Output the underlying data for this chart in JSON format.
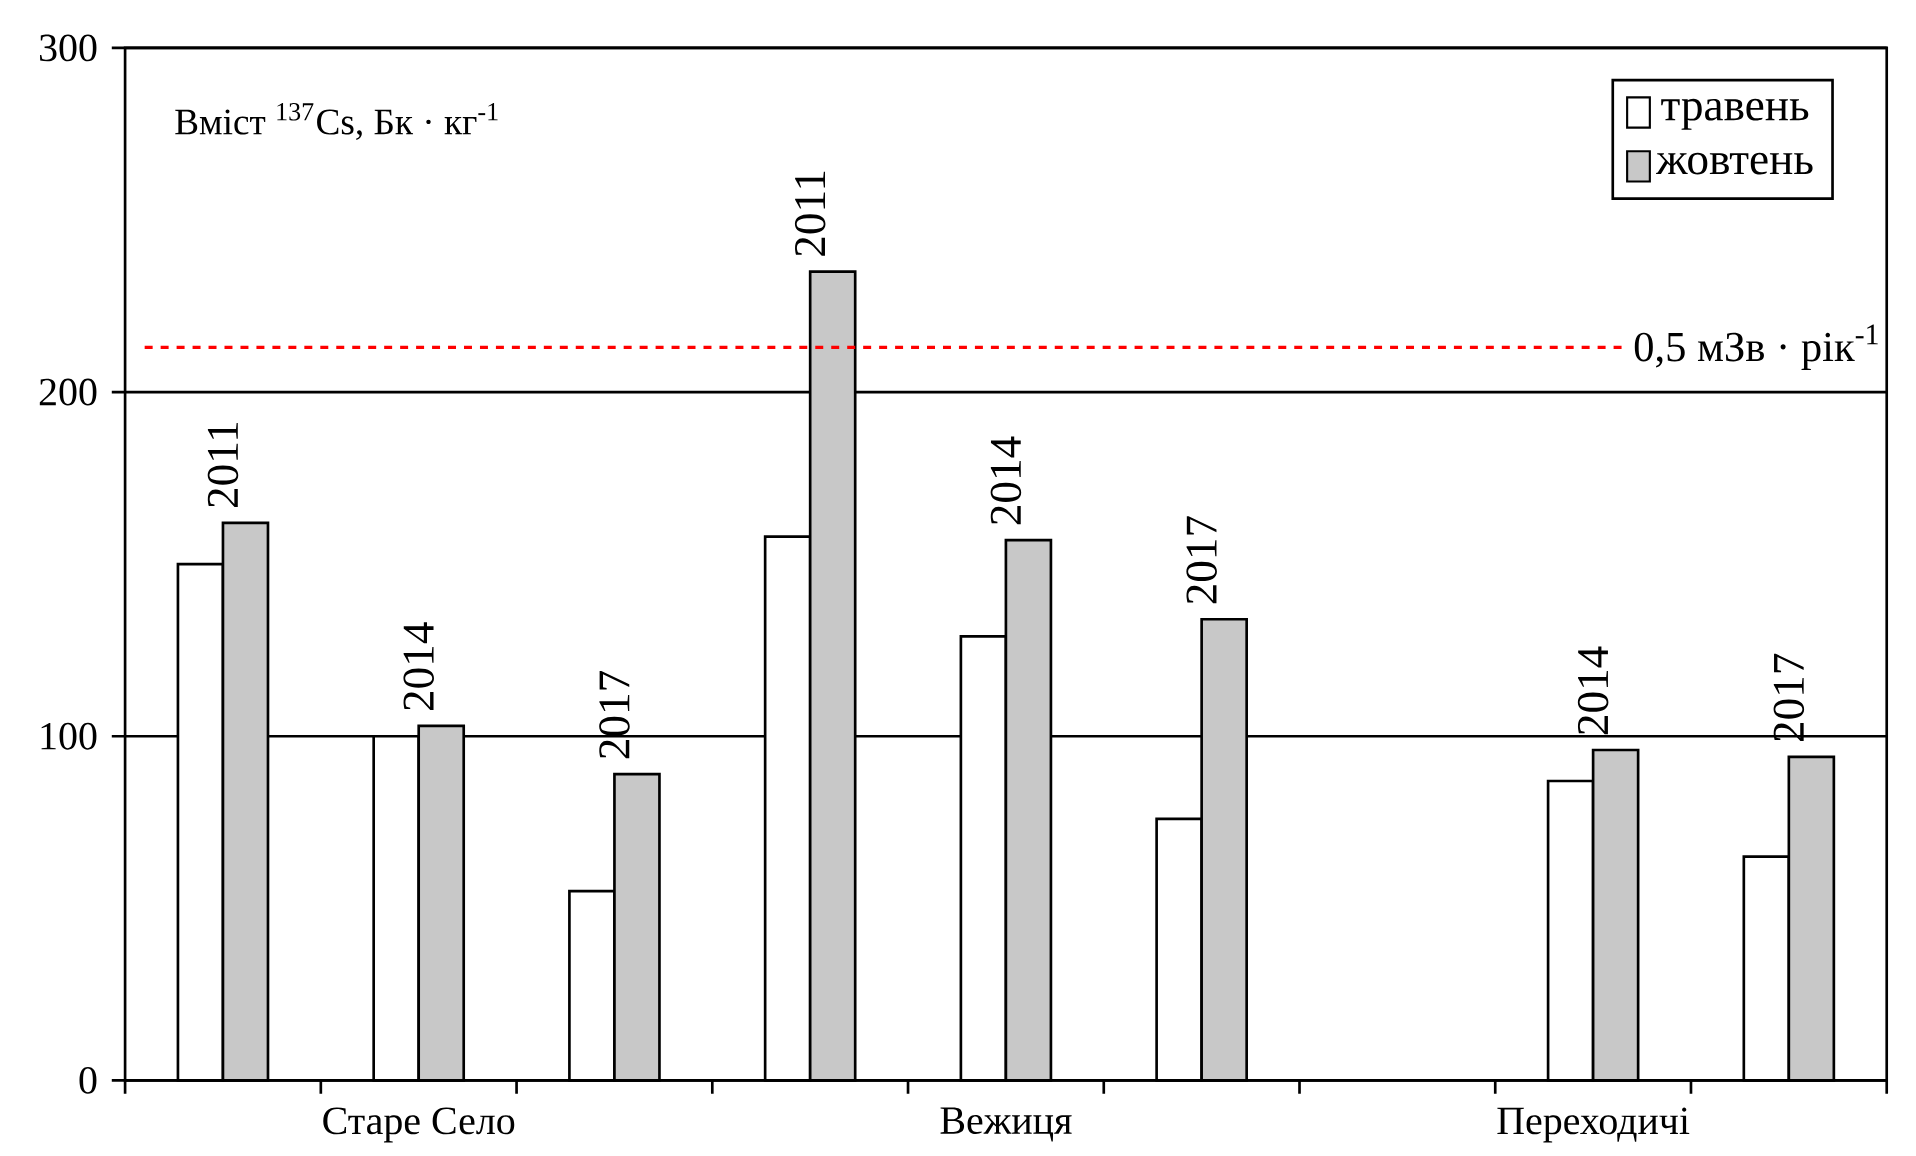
{
  "chart_data": {
    "type": "bar",
    "title": "Вміст $^{137}$Cs, Бк · кг$^{-1}$",
    "categories": [
      null,
      "Старе Село",
      null,
      null,
      "Вежиця",
      null,
      null,
      "Переходичі",
      null
    ],
    "series": [
      {
        "name": "травень",
        "color": "#ffffff",
        "values": [
          150,
          100,
          55,
          158,
          129,
          76,
          null,
          87,
          65
        ]
      },
      {
        "name": "жовтень",
        "color": "#c8c8c8",
        "values": [
          162,
          103,
          89,
          235,
          157,
          134,
          null,
          96,
          94
        ]
      }
    ],
    "annotations": [
      "2011",
      "2014",
      "2017",
      "2011",
      "2014",
      "2017",
      "2014",
      "2017"
    ],
    "ref_lines": [
      {
        "axis": "y",
        "value": 213,
        "label": "0,5 мЗв · рік$^{-1}$",
        "color": "#ff0000",
        "line_style": "dashed"
      }
    ],
    "ylim": [
      0,
      300
    ],
    "yticks": [
      0,
      100,
      200,
      300
    ],
    "grid": "y",
    "legend": "top right"
  }
}
